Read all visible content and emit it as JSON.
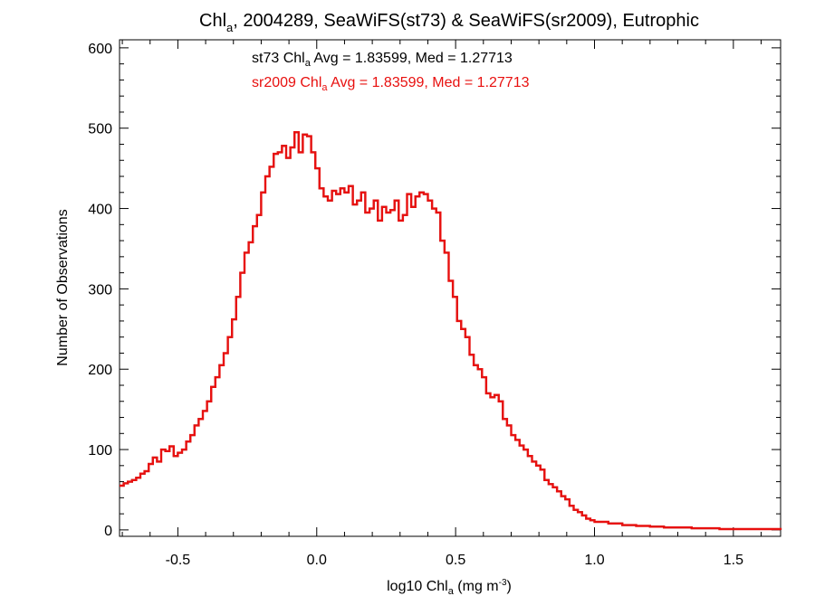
{
  "chart_data": {
    "type": "line",
    "step": true,
    "title_main": "Chl",
    "title_sub": "a",
    "title_rest": ", 2004289, SeaWiFS(st73) & SeaWiFS(sr2009), Eutrophic",
    "xlabel_main": "log10 Chl",
    "xlabel_sub": "a",
    "xlabel_units": " (mg m",
    "xlabel_sup": "-3",
    "xlabel_close": ")",
    "ylabel": "Number of Observations",
    "xlim": [
      -0.71,
      1.67
    ],
    "ylim": [
      -8,
      610
    ],
    "xticks": [
      -0.5,
      0.0,
      0.5,
      1.0,
      1.5
    ],
    "xtick_labels": [
      "-0.5",
      "0.0",
      "0.5",
      "1.0",
      "1.5"
    ],
    "yticks": [
      0,
      100,
      200,
      300,
      400,
      500,
      600
    ],
    "ytick_labels": [
      "0",
      "100",
      "200",
      "300",
      "400",
      "500",
      "600"
    ],
    "annotations": [
      {
        "prefix": "st73 Chl",
        "sub": "a",
        "suffix": " Avg = 1.83599, Med = 1.27713",
        "color": "#000000"
      },
      {
        "prefix": "sr2009 Chl",
        "sub": "a",
        "suffix": " Avg = 1.83599, Med = 1.27713",
        "color": "#e8100f"
      }
    ],
    "series": [
      {
        "color": "#000000",
        "x": [
          -0.71,
          -0.695,
          -0.68,
          -0.665,
          -0.65,
          -0.635,
          -0.62,
          -0.605,
          -0.59,
          -0.575,
          -0.56,
          -0.545,
          -0.53,
          -0.515,
          -0.5,
          -0.485,
          -0.47,
          -0.455,
          -0.44,
          -0.425,
          -0.41,
          -0.395,
          -0.38,
          -0.365,
          -0.35,
          -0.335,
          -0.32,
          -0.305,
          -0.29,
          -0.275,
          -0.26,
          -0.245,
          -0.23,
          -0.215,
          -0.2,
          -0.185,
          -0.17,
          -0.155,
          -0.14,
          -0.125,
          -0.11,
          -0.095,
          -0.08,
          -0.065,
          -0.05,
          -0.035,
          -0.02,
          -0.005,
          0.01,
          0.025,
          0.04,
          0.055,
          0.07,
          0.085,
          0.1,
          0.115,
          0.13,
          0.145,
          0.16,
          0.175,
          0.19,
          0.205,
          0.22,
          0.235,
          0.25,
          0.265,
          0.28,
          0.295,
          0.31,
          0.325,
          0.34,
          0.355,
          0.37,
          0.385,
          0.4,
          0.415,
          0.43,
          0.445,
          0.46,
          0.475,
          0.49,
          0.505,
          0.52,
          0.535,
          0.55,
          0.565,
          0.58,
          0.595,
          0.61,
          0.625,
          0.64,
          0.655,
          0.67,
          0.685,
          0.7,
          0.715,
          0.73,
          0.745,
          0.76,
          0.775,
          0.79,
          0.805,
          0.82,
          0.835,
          0.85,
          0.865,
          0.88,
          0.895,
          0.91,
          0.925,
          0.94,
          0.955,
          0.97,
          0.985,
          1.0,
          1.05,
          1.1,
          1.15,
          1.2,
          1.25,
          1.3,
          1.35,
          1.4,
          1.45,
          1.5,
          1.55,
          1.6,
          1.67
        ],
        "y": [
          55,
          58,
          60,
          62,
          65,
          70,
          73,
          82,
          90,
          85,
          100,
          98,
          104,
          92,
          96,
          100,
          110,
          118,
          130,
          138,
          148,
          160,
          178,
          190,
          205,
          220,
          240,
          262,
          290,
          320,
          345,
          358,
          378,
          392,
          420,
          440,
          452,
          468,
          470,
          478,
          463,
          476,
          495,
          470,
          492,
          490,
          470,
          450,
          425,
          415,
          410,
          422,
          418,
          425,
          420,
          428,
          405,
          410,
          420,
          395,
          400,
          410,
          385,
          402,
          395,
          398,
          410,
          385,
          392,
          418,
          402,
          415,
          420,
          418,
          410,
          400,
          395,
          360,
          345,
          310,
          290,
          260,
          250,
          240,
          218,
          205,
          200,
          190,
          170,
          165,
          168,
          160,
          138,
          130,
          118,
          112,
          105,
          100,
          92,
          85,
          80,
          75,
          62,
          57,
          53,
          48,
          42,
          38,
          30,
          25,
          22,
          18,
          14,
          12,
          10,
          8,
          6,
          5,
          4,
          3,
          3,
          2,
          2,
          1,
          1,
          1,
          1,
          0
        ],
        "values": [
          55,
          58,
          60,
          62,
          65,
          70,
          73,
          82,
          90,
          85,
          100,
          98,
          104,
          92,
          96,
          100,
          110,
          118,
          130,
          138,
          148,
          160,
          178,
          190,
          205,
          220,
          240,
          262,
          290,
          320,
          345,
          358,
          378,
          392,
          420,
          440,
          452,
          468,
          470,
          478,
          463,
          476,
          495,
          470,
          492,
          490,
          470,
          450,
          425,
          415,
          410,
          422,
          418,
          425,
          420,
          428,
          405,
          410,
          420,
          395,
          400,
          410,
          385,
          402,
          395,
          398,
          410,
          385,
          392,
          418,
          402,
          415,
          420,
          418,
          410,
          400,
          395,
          360,
          345,
          310,
          290,
          260,
          250,
          240,
          218,
          205,
          200,
          190,
          170,
          165,
          168,
          160,
          138,
          130,
          118,
          112,
          105,
          100,
          92,
          85,
          80,
          75,
          62,
          57,
          53,
          48,
          42,
          38,
          30,
          25,
          22,
          18,
          14,
          12,
          10,
          8,
          6,
          5,
          4,
          3,
          3,
          2,
          2,
          1,
          1,
          1,
          1,
          0
        ]
      },
      {
        "color": "#e8100f",
        "x": [
          -0.71,
          -0.695,
          -0.68,
          -0.665,
          -0.65,
          -0.635,
          -0.62,
          -0.605,
          -0.59,
          -0.575,
          -0.56,
          -0.545,
          -0.53,
          -0.515,
          -0.5,
          -0.485,
          -0.47,
          -0.455,
          -0.44,
          -0.425,
          -0.41,
          -0.395,
          -0.38,
          -0.365,
          -0.35,
          -0.335,
          -0.32,
          -0.305,
          -0.29,
          -0.275,
          -0.26,
          -0.245,
          -0.23,
          -0.215,
          -0.2,
          -0.185,
          -0.17,
          -0.155,
          -0.14,
          -0.125,
          -0.11,
          -0.095,
          -0.08,
          -0.065,
          -0.05,
          -0.035,
          -0.02,
          -0.005,
          0.01,
          0.025,
          0.04,
          0.055,
          0.07,
          0.085,
          0.1,
          0.115,
          0.13,
          0.145,
          0.16,
          0.175,
          0.19,
          0.205,
          0.22,
          0.235,
          0.25,
          0.265,
          0.28,
          0.295,
          0.31,
          0.325,
          0.34,
          0.355,
          0.37,
          0.385,
          0.4,
          0.415,
          0.43,
          0.445,
          0.46,
          0.475,
          0.49,
          0.505,
          0.52,
          0.535,
          0.55,
          0.565,
          0.58,
          0.595,
          0.61,
          0.625,
          0.64,
          0.655,
          0.67,
          0.685,
          0.7,
          0.715,
          0.73,
          0.745,
          0.76,
          0.775,
          0.79,
          0.805,
          0.82,
          0.835,
          0.85,
          0.865,
          0.88,
          0.895,
          0.91,
          0.925,
          0.94,
          0.955,
          0.97,
          0.985,
          1.0,
          1.05,
          1.1,
          1.15,
          1.2,
          1.25,
          1.3,
          1.35,
          1.4,
          1.45,
          1.5,
          1.55,
          1.6,
          1.67
        ],
        "y": [
          55,
          58,
          60,
          62,
          65,
          70,
          73,
          82,
          90,
          85,
          100,
          98,
          104,
          92,
          96,
          100,
          110,
          118,
          130,
          138,
          148,
          160,
          178,
          190,
          205,
          220,
          240,
          262,
          290,
          320,
          345,
          358,
          378,
          392,
          420,
          440,
          452,
          468,
          470,
          478,
          463,
          476,
          495,
          470,
          492,
          490,
          470,
          450,
          425,
          415,
          410,
          422,
          418,
          425,
          420,
          428,
          405,
          410,
          420,
          395,
          400,
          410,
          385,
          402,
          395,
          398,
          410,
          385,
          392,
          418,
          402,
          415,
          420,
          418,
          410,
          400,
          395,
          360,
          345,
          310,
          290,
          260,
          250,
          240,
          218,
          205,
          200,
          190,
          170,
          165,
          168,
          160,
          138,
          130,
          118,
          112,
          105,
          100,
          92,
          85,
          80,
          75,
          62,
          57,
          53,
          48,
          42,
          38,
          30,
          25,
          22,
          18,
          14,
          12,
          10,
          8,
          6,
          5,
          4,
          3,
          3,
          2,
          2,
          1,
          1,
          1,
          1,
          0
        ],
        "values": [
          55,
          58,
          60,
          62,
          65,
          70,
          73,
          82,
          90,
          85,
          100,
          98,
          104,
          92,
          96,
          100,
          110,
          118,
          130,
          138,
          148,
          160,
          178,
          190,
          205,
          220,
          240,
          262,
          290,
          320,
          345,
          358,
          378,
          392,
          420,
          440,
          452,
          468,
          470,
          478,
          463,
          476,
          495,
          470,
          492,
          490,
          470,
          450,
          425,
          415,
          410,
          422,
          418,
          425,
          420,
          428,
          405,
          410,
          420,
          395,
          400,
          410,
          385,
          402,
          395,
          398,
          410,
          385,
          392,
          418,
          402,
          415,
          420,
          418,
          410,
          400,
          395,
          360,
          345,
          310,
          290,
          260,
          250,
          240,
          218,
          205,
          200,
          190,
          170,
          165,
          168,
          160,
          138,
          130,
          118,
          112,
          105,
          100,
          92,
          85,
          80,
          75,
          62,
          57,
          53,
          48,
          42,
          38,
          30,
          25,
          22,
          18,
          14,
          12,
          10,
          8,
          6,
          5,
          4,
          3,
          3,
          2,
          2,
          1,
          1,
          1,
          1,
          0
        ]
      }
    ]
  }
}
